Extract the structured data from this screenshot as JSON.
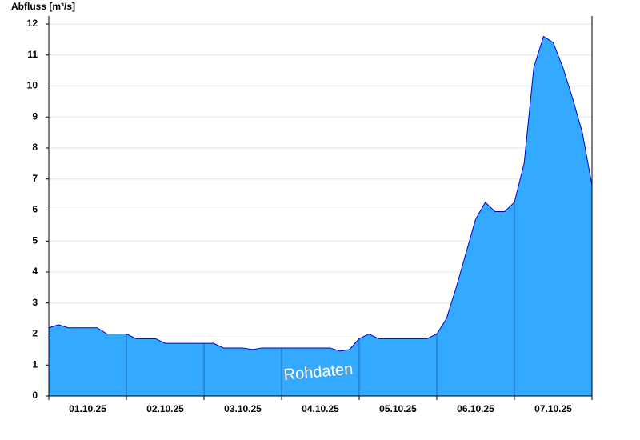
{
  "chart_data": {
    "type": "area",
    "y_label": "Abfluss [m³/s]",
    "annotation": "Rohdaten",
    "categories": [
      null,
      null,
      null,
      null,
      "01.10.25",
      null,
      null,
      null,
      null,
      null,
      null,
      null,
      "02.10.25",
      null,
      null,
      null,
      null,
      null,
      null,
      null,
      "03.10.25",
      null,
      null,
      null,
      null,
      null,
      null,
      null,
      "04.10.25",
      null,
      null,
      null,
      null,
      null,
      null,
      null,
      "05.10.25",
      null,
      null,
      null,
      null,
      null,
      null,
      null,
      "06.10.25",
      null,
      null,
      null,
      null,
      null,
      null,
      null,
      "07.10.25",
      null,
      null,
      null,
      null
    ],
    "values": [
      2.2,
      2.3,
      2.2,
      2.2,
      2.2,
      2.2,
      2.0,
      2.0,
      2.0,
      1.85,
      1.85,
      1.85,
      1.7,
      1.7,
      1.7,
      1.7,
      1.7,
      1.7,
      1.55,
      1.55,
      1.55,
      1.5,
      1.55,
      1.55,
      1.55,
      1.55,
      1.55,
      1.55,
      1.55,
      1.55,
      1.45,
      1.5,
      1.85,
      2.0,
      1.85,
      1.85,
      1.85,
      1.85,
      1.85,
      1.85,
      2.0,
      2.5,
      3.5,
      4.6,
      5.7,
      6.25,
      5.95,
      5.95,
      6.25,
      7.5,
      10.6,
      11.6,
      11.4,
      10.6,
      9.6,
      8.5,
      6.8
    ],
    "color": "#33aaff",
    "line_color": "#0000cc",
    "ylim": [
      0,
      12
    ],
    "yticks": [
      0,
      1,
      2,
      3,
      4,
      5,
      6,
      7,
      8,
      9,
      10,
      11,
      12
    ],
    "grid": true
  }
}
